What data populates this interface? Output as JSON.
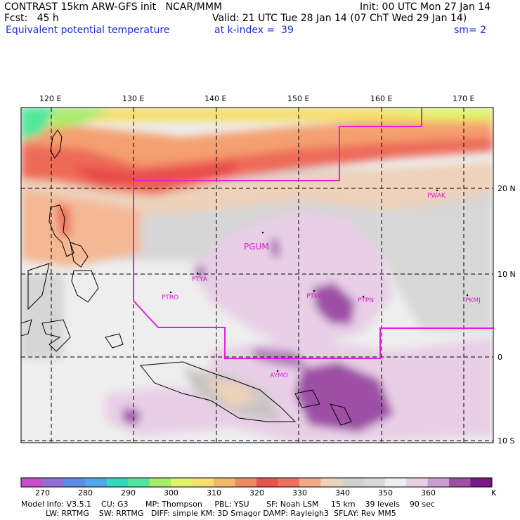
{
  "header": {
    "line1_left": "CONTRAST 15km ARW-GFS init   NCAR/MMM",
    "line1_right": "Init: 00 UTC Mon 27 Jan 14",
    "line2_left": "Fcst:   45 h",
    "line2_right": "Valid: 21 UTC Tue 28 Jan 14 (07 ChT Wed 29 Jan 14)",
    "line3_left": "Equivalent potential temperature",
    "line3_mid": "at k-index =  39",
    "line3_right": "sm= 2"
  },
  "map": {
    "lon_labels": [
      "120 E",
      "130 E",
      "140 E",
      "150 E",
      "160 E",
      "170 E"
    ],
    "lat_labels": [
      "20 N",
      "10 N",
      "0",
      "10 S"
    ],
    "stations": [
      "PGUM",
      "PTYA",
      "PTRO",
      "PTKK",
      "PTPN",
      "PKMJ",
      "PWAK",
      "AYMO"
    ],
    "colors": {
      "boundary": "#e81fd8",
      "station": "#d81fd0"
    }
  },
  "colorbar": {
    "labels": [
      "270",
      "280",
      "290",
      "300",
      "310",
      "320",
      "330",
      "340",
      "350",
      "360",
      "K"
    ],
    "colors": [
      "#c94fc9",
      "#8f6fd8",
      "#5c8ee6",
      "#4fa8ee",
      "#34d9c0",
      "#4fe89a",
      "#a8ec6c",
      "#e0f46a",
      "#f6df6c",
      "#f4b86a",
      "#ee8a64",
      "#e85450",
      "#f07060",
      "#f4a888",
      "#eed2ba",
      "#d4d2d0",
      "#d8d8d8",
      "#eeeeee",
      "#e8cfe6",
      "#c99fd2",
      "#9d4fa6",
      "#7a1a86"
    ]
  },
  "footer": {
    "line1": "Model Info: V3.5.1    CU: G3       MP: Thompson     PBL: YSU       SF: Noah LSM     15 km    39 levels    90 sec",
    "line2": "          LW: RRTMG    SW: RRTMG   DIFF: simple KM: 3D Smagor DAMP: Rayleigh3  SFLAY: Rev MM5"
  }
}
